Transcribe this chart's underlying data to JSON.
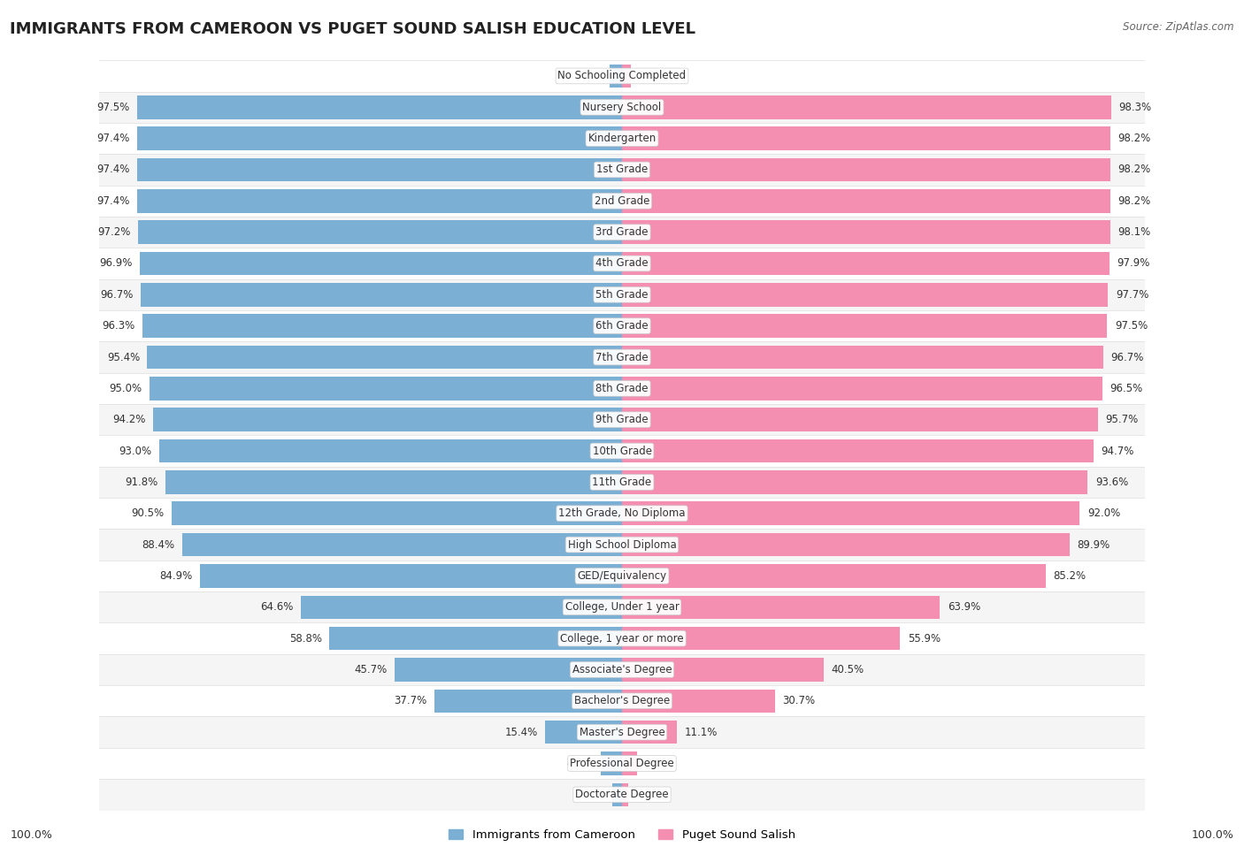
{
  "title": "IMMIGRANTS FROM CAMEROON VS PUGET SOUND SALISH EDUCATION LEVEL",
  "source": "Source: ZipAtlas.com",
  "categories": [
    "No Schooling Completed",
    "Nursery School",
    "Kindergarten",
    "1st Grade",
    "2nd Grade",
    "3rd Grade",
    "4th Grade",
    "5th Grade",
    "6th Grade",
    "7th Grade",
    "8th Grade",
    "9th Grade",
    "10th Grade",
    "11th Grade",
    "12th Grade, No Diploma",
    "High School Diploma",
    "GED/Equivalency",
    "College, Under 1 year",
    "College, 1 year or more",
    "Associate's Degree",
    "Bachelor's Degree",
    "Master's Degree",
    "Professional Degree",
    "Doctorate Degree"
  ],
  "cameroon": [
    2.5,
    97.5,
    97.4,
    97.4,
    97.4,
    97.2,
    96.9,
    96.7,
    96.3,
    95.4,
    95.0,
    94.2,
    93.0,
    91.8,
    90.5,
    88.4,
    84.9,
    64.6,
    58.8,
    45.7,
    37.7,
    15.4,
    4.3,
    2.0
  ],
  "salish": [
    1.8,
    98.3,
    98.2,
    98.2,
    98.2,
    98.1,
    97.9,
    97.7,
    97.5,
    96.7,
    96.5,
    95.7,
    94.7,
    93.6,
    92.0,
    89.9,
    85.2,
    63.9,
    55.9,
    40.5,
    30.7,
    11.1,
    3.1,
    1.2
  ],
  "cameroon_color": "#7bafd4",
  "salish_color": "#f48fb1",
  "title_fontsize": 13,
  "label_fontsize": 8.5,
  "value_fontsize": 8.5,
  "legend_label_cameroon": "Immigrants from Cameroon",
  "legend_label_salish": "Puget Sound Salish"
}
